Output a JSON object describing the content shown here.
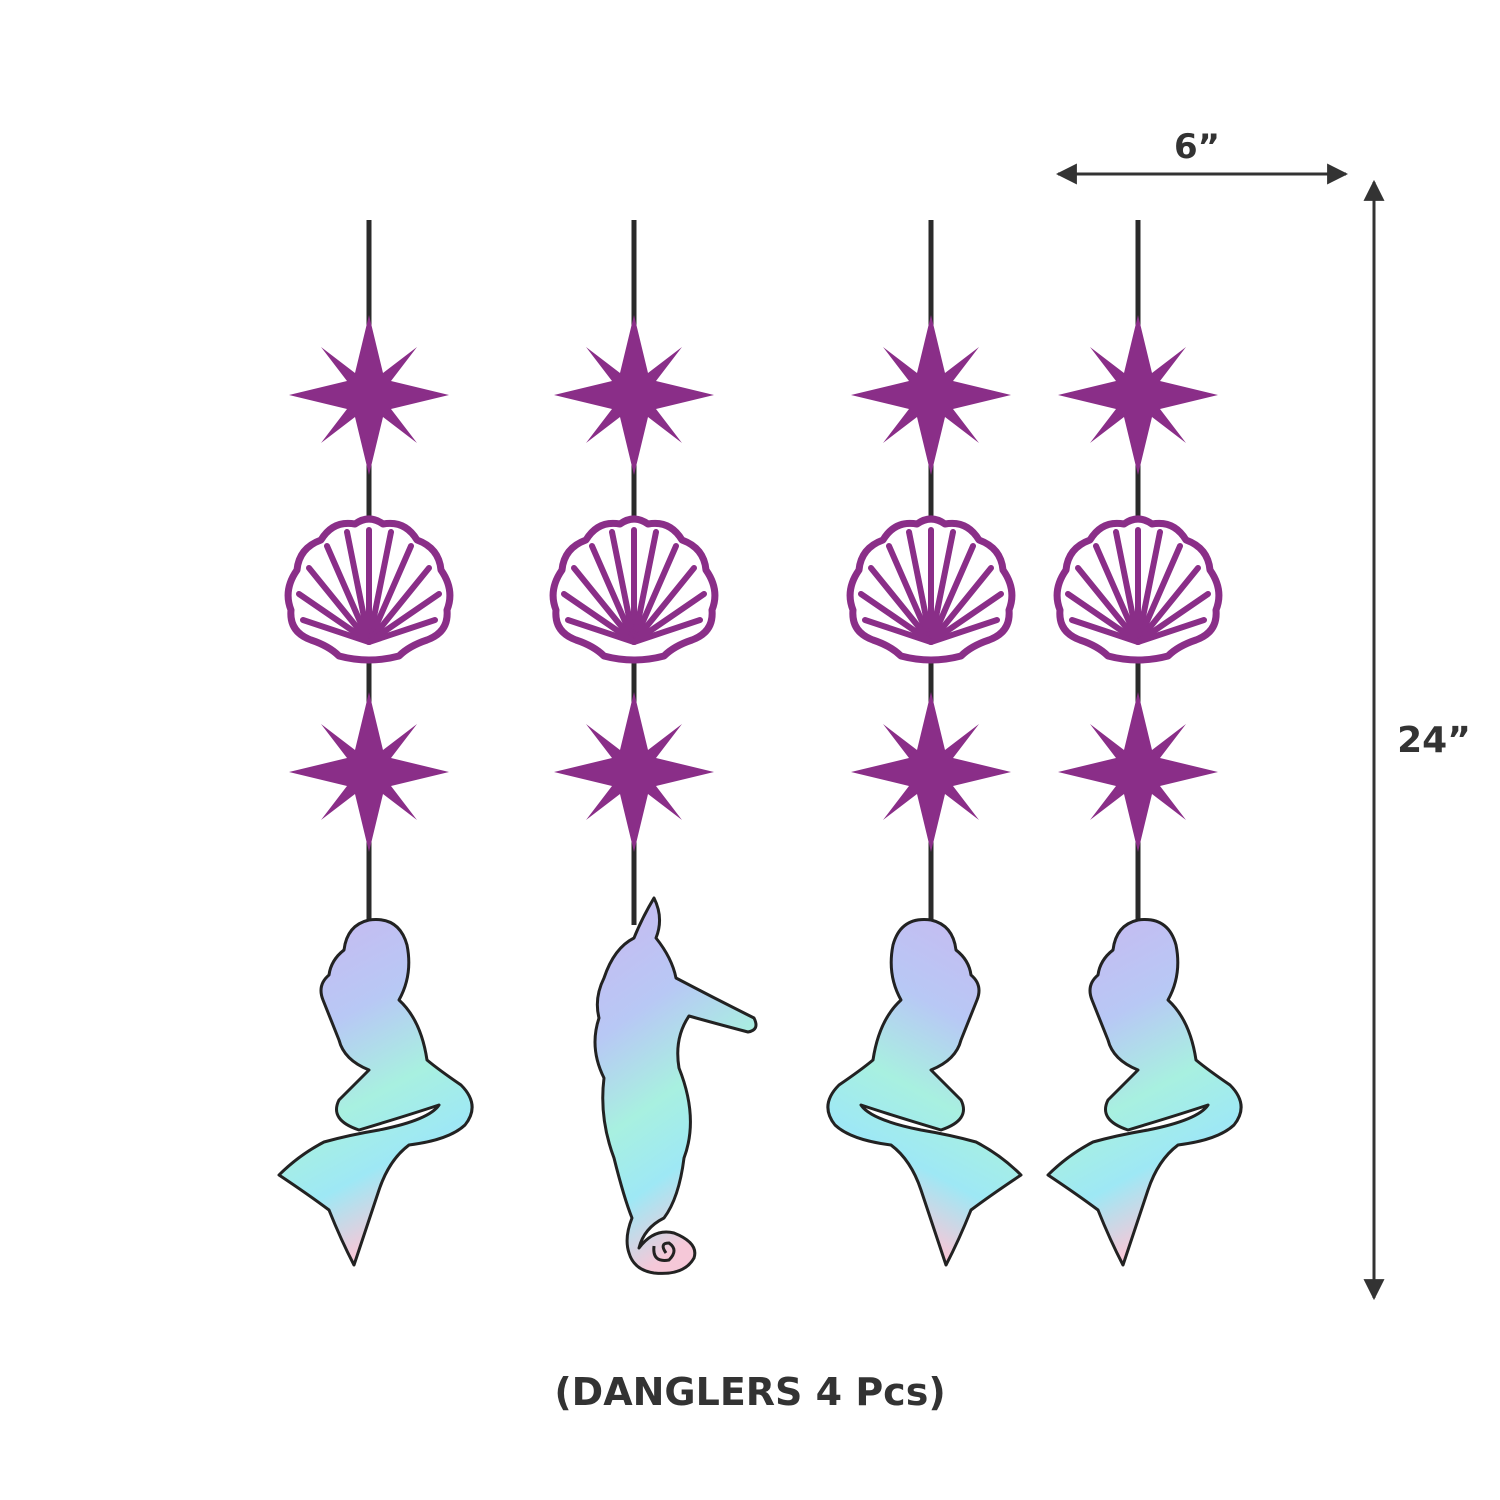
{
  "colors": {
    "accent": "#8a2e88",
    "string": "#2a2a2a",
    "dimension": "#333333"
  },
  "dimensions": {
    "width_label": "6”",
    "height_label": "24”"
  },
  "caption": "(DANGLERS 4 Pcs)",
  "danglers": [
    {
      "items": [
        "star",
        "shell",
        "star",
        "mermaid"
      ],
      "bottom_facing": "left"
    },
    {
      "items": [
        "star",
        "shell",
        "star",
        "seahorse"
      ]
    },
    {
      "items": [
        "star",
        "shell",
        "star",
        "mermaid"
      ],
      "bottom_facing": "right"
    },
    {
      "items": [
        "star",
        "shell",
        "star",
        "mermaid"
      ],
      "bottom_facing": "left"
    }
  ]
}
